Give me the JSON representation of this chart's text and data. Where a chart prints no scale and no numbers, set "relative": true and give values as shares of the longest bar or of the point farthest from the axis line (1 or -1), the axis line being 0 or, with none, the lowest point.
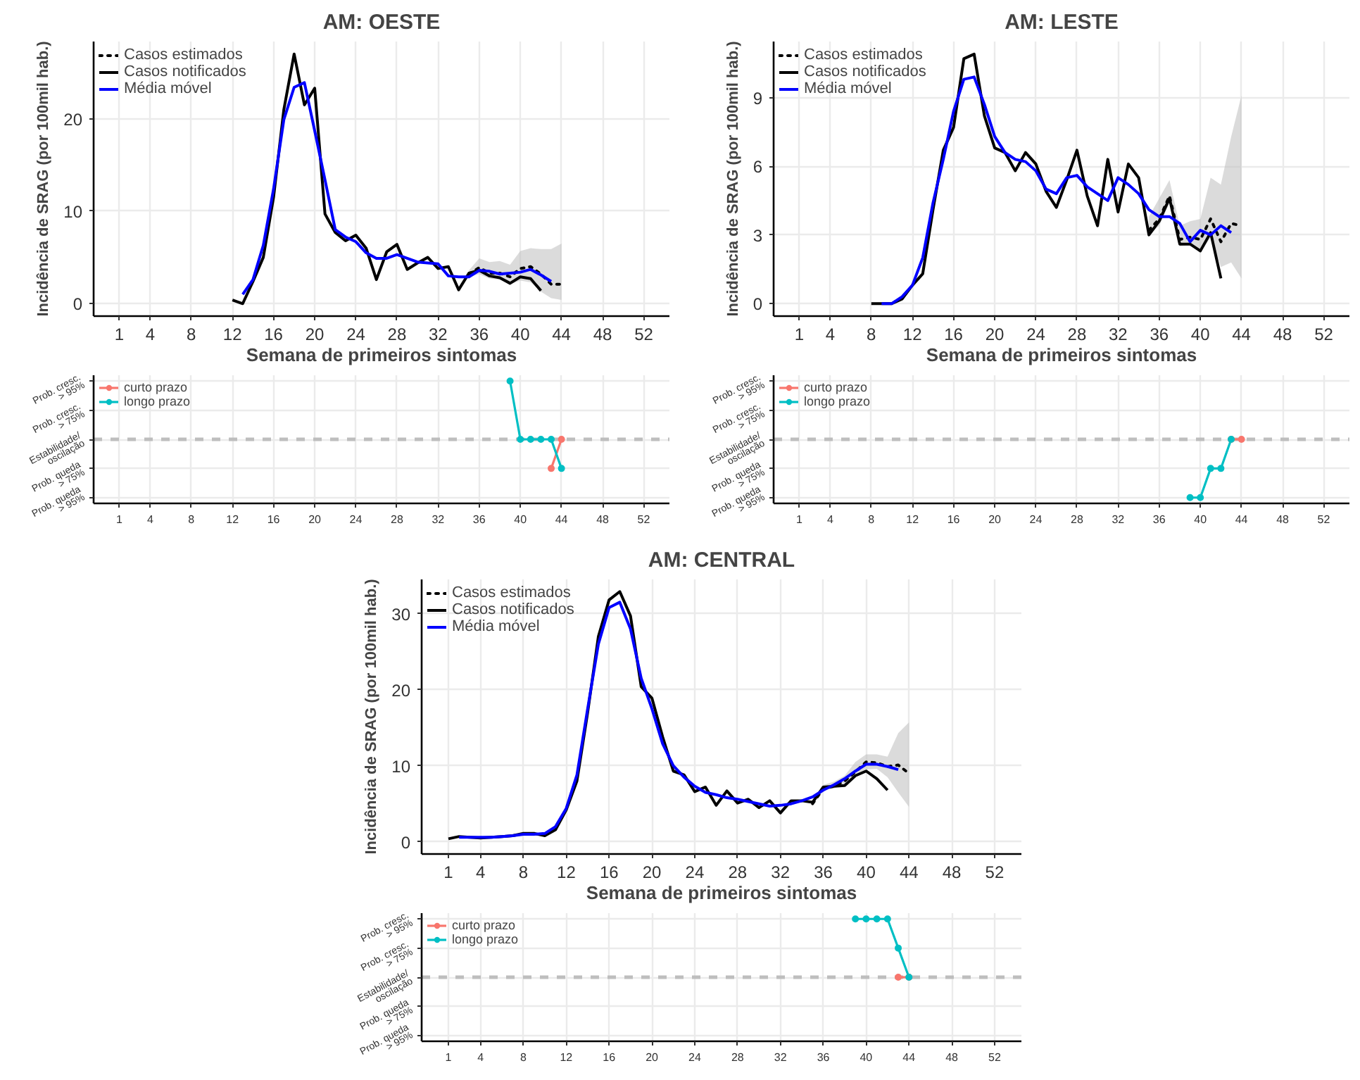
{
  "chart_data": [
    {
      "type": "line",
      "title": "AM: OESTE",
      "xlabel": "Semana de primeiros sintomas",
      "ylabel": "Incidência de SRAG (por 100mil hab.)",
      "xlim": [
        -1.5,
        54.5
      ],
      "xticks": [
        1,
        4,
        8,
        12,
        16,
        20,
        24,
        28,
        32,
        36,
        40,
        44,
        48,
        52
      ],
      "ylim": [
        -1.35,
        28.35
      ],
      "yticks": [
        0,
        10,
        20
      ],
      "grid": true,
      "legend": "top left",
      "series": [
        {
          "name": "Casos estimados",
          "color": "#000000",
          "line_style": "dotted",
          "x": [
            35,
            36,
            37,
            38,
            39,
            40,
            41,
            42,
            43,
            44
          ],
          "values": [
            3.2,
            3.9,
            3.3,
            3.3,
            2.9,
            3.8,
            4.0,
            3.2,
            2.1,
            2.1
          ],
          "lower": [
            2.9,
            3.2,
            2.7,
            2.6,
            2.1,
            2.5,
            2.3,
            1.3,
            0.6,
            0.4
          ],
          "upper": [
            3.6,
            4.9,
            4.5,
            4.6,
            4.2,
            5.7,
            6.0,
            5.9,
            5.9,
            6.5
          ]
        },
        {
          "name": "Casos notificados",
          "color": "#000000",
          "line_style": "solid",
          "x": [
            12,
            13,
            14,
            15,
            16,
            17,
            18,
            19,
            20,
            21,
            22,
            23,
            24,
            25,
            26,
            27,
            28,
            29,
            30,
            31,
            32,
            33,
            34,
            35,
            36,
            37,
            38,
            39,
            40,
            41,
            42
          ],
          "values": [
            0.4,
            0.0,
            2.4,
            5.0,
            11.5,
            21.0,
            27.0,
            21.5,
            23.3,
            9.7,
            7.7,
            6.8,
            7.4,
            6.0,
            2.6,
            5.6,
            6.4,
            3.7,
            4.4,
            5.0,
            3.8,
            4.0,
            1.5,
            3.3,
            3.6,
            3.0,
            2.8,
            2.2,
            2.9,
            2.7,
            1.4
          ]
        },
        {
          "name": "Média móvel",
          "color": "#0000ff",
          "line_style": "solid",
          "x": [
            13,
            14,
            15,
            16,
            17,
            18,
            19,
            20,
            21,
            22,
            23,
            24,
            25,
            26,
            27,
            28,
            29,
            30,
            31,
            32,
            33,
            34,
            35,
            36,
            37,
            38,
            39,
            40,
            41,
            42,
            43
          ],
          "values": [
            1.0,
            2.6,
            6.3,
            12.4,
            19.9,
            23.4,
            23.9,
            18.7,
            13.4,
            8.0,
            7.2,
            6.7,
            5.5,
            4.9,
            4.9,
            5.3,
            4.9,
            4.5,
            4.4,
            4.3,
            3.0,
            2.9,
            2.9,
            3.6,
            3.5,
            3.2,
            3.3,
            3.4,
            3.7,
            3.1,
            2.4
          ]
        }
      ]
    },
    {
      "type": "line",
      "title": "AM: LESTE",
      "xlabel": "Semana de primeiros sintomas",
      "ylabel": "Incidência de SRAG (por 100mil hab.)",
      "xlim": [
        -1.5,
        54.5
      ],
      "xticks": [
        1,
        4,
        8,
        12,
        16,
        20,
        24,
        28,
        32,
        36,
        40,
        44,
        48,
        52
      ],
      "ylim": [
        -0.55,
        11.45
      ],
      "yticks": [
        0,
        3,
        6,
        9
      ],
      "grid": true,
      "legend": "top left",
      "series": [
        {
          "name": "Casos estimados",
          "color": "#000000",
          "line_style": "dotted",
          "x": [
            35,
            36,
            37,
            38,
            39,
            40,
            41,
            42,
            43,
            44
          ],
          "values": [
            3.2,
            3.7,
            4.7,
            2.8,
            2.9,
            2.8,
            3.7,
            2.7,
            3.5,
            3.4
          ],
          "lower": [
            3.0,
            3.4,
            4.4,
            2.5,
            2.6,
            2.2,
            2.9,
            1.6,
            1.8,
            1.1
          ],
          "upper": [
            3.8,
            4.6,
            5.4,
            3.4,
            3.6,
            3.7,
            5.5,
            5.2,
            7.3,
            9.1
          ]
        },
        {
          "name": "Casos notificados",
          "color": "#000000",
          "line_style": "solid",
          "x": [
            8,
            9,
            10,
            11,
            12,
            13,
            14,
            15,
            16,
            17,
            18,
            19,
            20,
            21,
            22,
            23,
            24,
            25,
            26,
            27,
            28,
            29,
            30,
            31,
            32,
            33,
            34,
            35,
            36,
            37,
            38,
            39,
            40,
            41,
            42
          ],
          "values": [
            0,
            0,
            0,
            0.2,
            0.8,
            1.3,
            4.1,
            6.7,
            7.7,
            10.7,
            10.9,
            8.2,
            6.8,
            6.6,
            5.8,
            6.6,
            6.1,
            4.9,
            4.2,
            5.4,
            6.7,
            4.7,
            3.4,
            6.3,
            4.0,
            6.1,
            5.5,
            3.0,
            3.6,
            4.6,
            2.6,
            2.6,
            2.3,
            3.1,
            1.1
          ]
        },
        {
          "name": "Média móvel",
          "color": "#0000ff",
          "line_style": "solid",
          "x": [
            9,
            10,
            11,
            12,
            13,
            14,
            15,
            16,
            17,
            18,
            19,
            20,
            21,
            22,
            23,
            24,
            25,
            26,
            27,
            28,
            29,
            30,
            31,
            32,
            33,
            34,
            35,
            36,
            37,
            38,
            39,
            40,
            41,
            42,
            43
          ],
          "values": [
            0,
            0,
            0.3,
            0.8,
            2.0,
            4.4,
            6.3,
            8.4,
            9.8,
            9.9,
            8.7,
            7.3,
            6.6,
            6.3,
            6.2,
            5.8,
            5.0,
            4.8,
            5.5,
            5.6,
            5.1,
            4.8,
            4.5,
            5.5,
            5.2,
            4.8,
            4.1,
            3.8,
            3.8,
            3.5,
            2.7,
            3.2,
            3.0,
            3.4,
            3.1
          ]
        }
      ]
    },
    {
      "type": "line",
      "xlim": [
        -1.5,
        54.5
      ],
      "xticks": [
        1,
        4,
        8,
        12,
        16,
        20,
        24,
        28,
        32,
        36,
        40,
        44,
        48,
        52
      ],
      "y_categories": [
        "Prob. cresc.\n> 95%",
        "Prob. cresc.\n> 75%",
        "Estabilidade/\noscilação",
        "Prob. queda\n> 75%",
        "Prob. queda\n> 95%"
      ],
      "grid": true,
      "legend": "top left",
      "marker": "circle",
      "relative": true,
      "ref_lines": [
        {
          "axis": "y",
          "value": 0,
          "color": "#bebebe",
          "line_style": "dashed"
        }
      ],
      "series": [
        {
          "name": "curto prazo",
          "color": "#f8766d",
          "x": [
            43,
            44
          ],
          "values": [
            -0.5,
            0
          ]
        },
        {
          "name": "longo prazo",
          "color": "#00bfc4",
          "x": [
            39,
            40,
            41,
            42,
            43,
            44
          ],
          "values": [
            1,
            0,
            0,
            0,
            0,
            -0.5
          ]
        }
      ]
    },
    {
      "type": "line",
      "xlim": [
        -1.5,
        54.5
      ],
      "xticks": [
        1,
        4,
        8,
        12,
        16,
        20,
        24,
        28,
        32,
        36,
        40,
        44,
        48,
        52
      ],
      "y_categories": [
        "Prob. cresc.\n> 95%",
        "Prob. cresc.\n> 75%",
        "Estabilidade/\noscilação",
        "Prob. queda\n> 75%",
        "Prob. queda\n> 95%"
      ],
      "grid": true,
      "legend": "top left",
      "marker": "circle",
      "relative": true,
      "ref_lines": [
        {
          "axis": "y",
          "value": 0,
          "color": "#bebebe",
          "line_style": "dashed"
        }
      ],
      "series": [
        {
          "name": "curto prazo",
          "color": "#f8766d",
          "x": [
            43,
            44
          ],
          "values": [
            0,
            0
          ]
        },
        {
          "name": "longo prazo",
          "color": "#00bfc4",
          "x": [
            39,
            40,
            41,
            42,
            43
          ],
          "values": [
            -1,
            -1,
            -0.5,
            -0.5,
            0
          ]
        }
      ]
    },
    {
      "type": "line",
      "title": "AM: CENTRAL",
      "xlabel": "Semana de primeiros sintomas",
      "ylabel": "Incidência de SRAG (por 100mil hab.)",
      "xlim": [
        -1.5,
        54.5
      ],
      "xticks": [
        1,
        4,
        8,
        12,
        16,
        20,
        24,
        28,
        32,
        36,
        40,
        44,
        48,
        52
      ],
      "ylim": [
        -1.6,
        34.5
      ],
      "yticks": [
        0,
        10,
        20,
        30
      ],
      "grid": true,
      "legend": "top left",
      "series": [
        {
          "name": "Casos estimados",
          "color": "#000000",
          "line_style": "dotted",
          "x": [
            35,
            36,
            37,
            38,
            39,
            40,
            41,
            42,
            43,
            44
          ],
          "values": [
            5.0,
            7.0,
            7.3,
            8.0,
            9.2,
            10.5,
            10.4,
            9.9,
            10.1,
            9.0
          ],
          "lower": [
            4.8,
            6.8,
            7.0,
            7.6,
            8.5,
            9.5,
            9.6,
            8.5,
            6.5,
            4.6
          ],
          "upper": [
            5.3,
            7.5,
            7.9,
            8.7,
            10.5,
            11.5,
            11.5,
            11.2,
            14.3,
            15.7
          ]
        },
        {
          "name": "Casos notificados",
          "color": "#000000",
          "line_style": "solid",
          "x": [
            1,
            2,
            3,
            4,
            5,
            6,
            7,
            8,
            9,
            10,
            11,
            12,
            13,
            14,
            15,
            16,
            17,
            18,
            19,
            20,
            21,
            22,
            23,
            24,
            25,
            26,
            27,
            28,
            29,
            30,
            31,
            32,
            33,
            34,
            35,
            36,
            37,
            38,
            39,
            40,
            41,
            42
          ],
          "values": [
            0.4,
            0.7,
            0.6,
            0.5,
            0.6,
            0.7,
            0.8,
            1.1,
            1.1,
            0.8,
            1.6,
            4.2,
            8.0,
            17.0,
            27.0,
            31.8,
            32.9,
            29.7,
            20.4,
            18.9,
            13.8,
            9.3,
            8.8,
            6.6,
            7.2,
            4.8,
            6.7,
            5.1,
            5.6,
            4.5,
            5.4,
            3.8,
            5.4,
            5.4,
            5.2,
            7.2,
            7.3,
            7.4,
            8.7,
            9.3,
            8.3,
            6.8
          ]
        },
        {
          "name": "Média móvel",
          "color": "#0000ff",
          "line_style": "solid",
          "x": [
            2,
            3,
            4,
            5,
            6,
            7,
            8,
            9,
            10,
            11,
            12,
            13,
            14,
            15,
            16,
            17,
            18,
            19,
            20,
            21,
            22,
            23,
            24,
            25,
            26,
            27,
            28,
            29,
            30,
            31,
            32,
            33,
            34,
            35,
            36,
            37,
            38,
            39,
            40,
            41,
            42,
            43
          ],
          "values": [
            0.6,
            0.6,
            0.6,
            0.6,
            0.7,
            0.8,
            1.0,
            1.0,
            1.1,
            2.0,
            4.4,
            8.8,
            17.5,
            26.0,
            30.8,
            31.5,
            28.0,
            21.5,
            17.5,
            12.9,
            10.0,
            8.5,
            7.3,
            6.5,
            6.2,
            5.8,
            5.6,
            5.3,
            5.0,
            4.7,
            4.8,
            5.0,
            5.4,
            5.9,
            6.8,
            7.5,
            8.3,
            9.3,
            10.2,
            10.2,
            9.9,
            9.5
          ]
        }
      ]
    },
    {
      "type": "line",
      "xlim": [
        -1.5,
        54.5
      ],
      "xticks": [
        1,
        4,
        8,
        12,
        16,
        20,
        24,
        28,
        32,
        36,
        40,
        44,
        48,
        52
      ],
      "y_categories": [
        "Prob. cresc.\n> 95%",
        "Prob. cresc.\n> 75%",
        "Estabilidade/\noscilação",
        "Prob. queda\n> 75%",
        "Prob. queda\n> 95%"
      ],
      "grid": true,
      "legend": "top left",
      "marker": "circle",
      "relative": true,
      "ref_lines": [
        {
          "axis": "y",
          "value": 0,
          "color": "#bebebe",
          "line_style": "dashed"
        }
      ],
      "series": [
        {
          "name": "curto prazo",
          "color": "#f8766d",
          "x": [
            43,
            44
          ],
          "values": [
            0,
            0
          ]
        },
        {
          "name": "longo prazo",
          "color": "#00bfc4",
          "x": [
            39,
            40,
            41,
            42,
            43,
            44
          ],
          "values": [
            1,
            1,
            1,
            1,
            0.5,
            0
          ]
        }
      ]
    }
  ]
}
